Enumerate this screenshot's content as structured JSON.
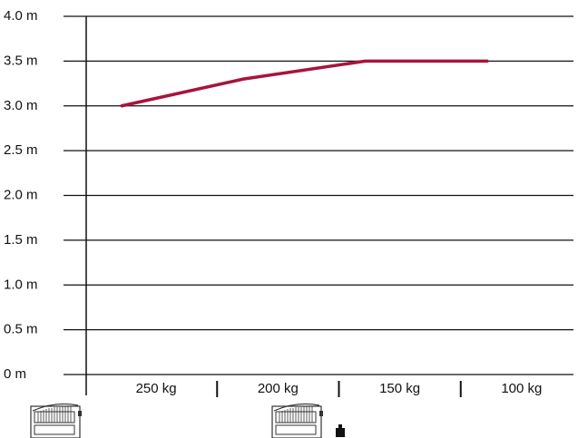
{
  "chart_data": {
    "type": "line",
    "title": "",
    "xlabel": "",
    "ylabel": "",
    "categories": [
      "250 kg",
      "200 kg",
      "150 kg",
      "100 kg"
    ],
    "y_ticks": [
      "4.0 m",
      "3.5 m",
      "3.0 m",
      "2.5 m",
      "2.0 m",
      "1.5 m",
      "1.0 m",
      "0.5 m",
      "0 m"
    ],
    "ylim": [
      0,
      4.0
    ],
    "grid": true,
    "legend": "none",
    "series": [
      {
        "x": [
          "250 kg",
          "200 kg",
          "150 kg",
          "100 kg"
        ],
        "values": [
          3.0,
          3.3,
          3.5,
          3.5
        ],
        "color": "#a8143c"
      }
    ],
    "icons": [
      "swing-gate-icon",
      "swing-gate-with-lock-icon"
    ]
  },
  "colors": {
    "series": "#a8143c",
    "axis": "#111111",
    "grid": "#111111",
    "icon": "#333333"
  }
}
